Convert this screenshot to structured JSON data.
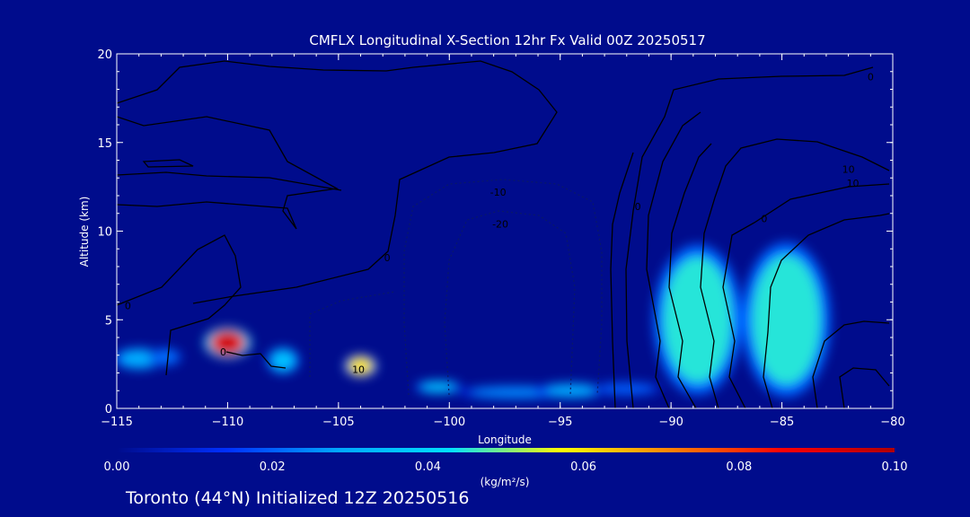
{
  "chart_data": {
    "type": "heatmap",
    "title": "CMFLX Longitudinal X-Section 12hr  Fx Valid 00Z 20250517",
    "xlabel": "Longitude",
    "ylabel": "Altitude (km)",
    "xlim": [
      -115,
      -80
    ],
    "ylim": [
      0,
      20
    ],
    "x_ticks": [
      "-115",
      "-110",
      "-105",
      "-100",
      "-95",
      "-90",
      "-85",
      "-80"
    ],
    "y_ticks": [
      "0",
      "5",
      "10",
      "15",
      "20"
    ],
    "colorbar": {
      "label": "(kg/m²/s)",
      "range": [
        0.0,
        0.1
      ],
      "ticks": [
        "0.00",
        "0.02",
        "0.04",
        "0.06",
        "0.08",
        "0.10"
      ],
      "colors": [
        "#000c8c",
        "#0030ff",
        "#00a8ff",
        "#00e0ff",
        "#ffff00",
        "#ff8000",
        "#ff0000",
        "#b00000"
      ]
    },
    "convective_mass_flux_cells": [
      {
        "lon": -114.0,
        "alt": 2.8,
        "value": 0.03
      },
      {
        "lon": -112.8,
        "alt": 2.9,
        "value": 0.022
      },
      {
        "lon": -110.0,
        "alt": 3.7,
        "value": 0.09
      },
      {
        "lon": -107.5,
        "alt": 2.7,
        "value": 0.035
      },
      {
        "lon": -104.0,
        "alt": 2.4,
        "value": 0.06
      },
      {
        "lon": -100.5,
        "alt": 1.2,
        "value": 0.035
      },
      {
        "lon": -97.0,
        "alt": 0.9,
        "value": 0.025
      },
      {
        "lon": -94.5,
        "alt": 1.0,
        "value": 0.03
      },
      {
        "lon": -92.0,
        "alt": 1.1,
        "value": 0.02
      },
      {
        "lon": -88.8,
        "alt": 5.0,
        "value": 0.045
      },
      {
        "lon": -84.8,
        "alt": 5.0,
        "value": 0.045
      }
    ],
    "contour_labels": [
      {
        "text": "0",
        "lon": -110.2,
        "alt": 3.0
      },
      {
        "text": "10",
        "lon": -104.1,
        "alt": 2.0
      },
      {
        "text": "0",
        "lon": -114.5,
        "alt": 5.6
      },
      {
        "text": "0",
        "lon": -102.8,
        "alt": 8.3
      },
      {
        "text": "-10",
        "lon": -97.8,
        "alt": 12.0
      },
      {
        "text": "-20",
        "lon": -97.7,
        "alt": 10.2
      },
      {
        "text": "10",
        "lon": -82.0,
        "alt": 13.3
      },
      {
        "text": "10",
        "lon": -81.8,
        "alt": 12.5
      },
      {
        "text": "0",
        "lon": -85.8,
        "alt": 10.5
      },
      {
        "text": "0",
        "lon": -91.5,
        "alt": 11.2
      },
      {
        "text": "0",
        "lon": -81.0,
        "alt": 18.5
      }
    ],
    "grid": false
  },
  "footer": {
    "caption": "Toronto (44°N) Initialized 12Z 20250516"
  }
}
